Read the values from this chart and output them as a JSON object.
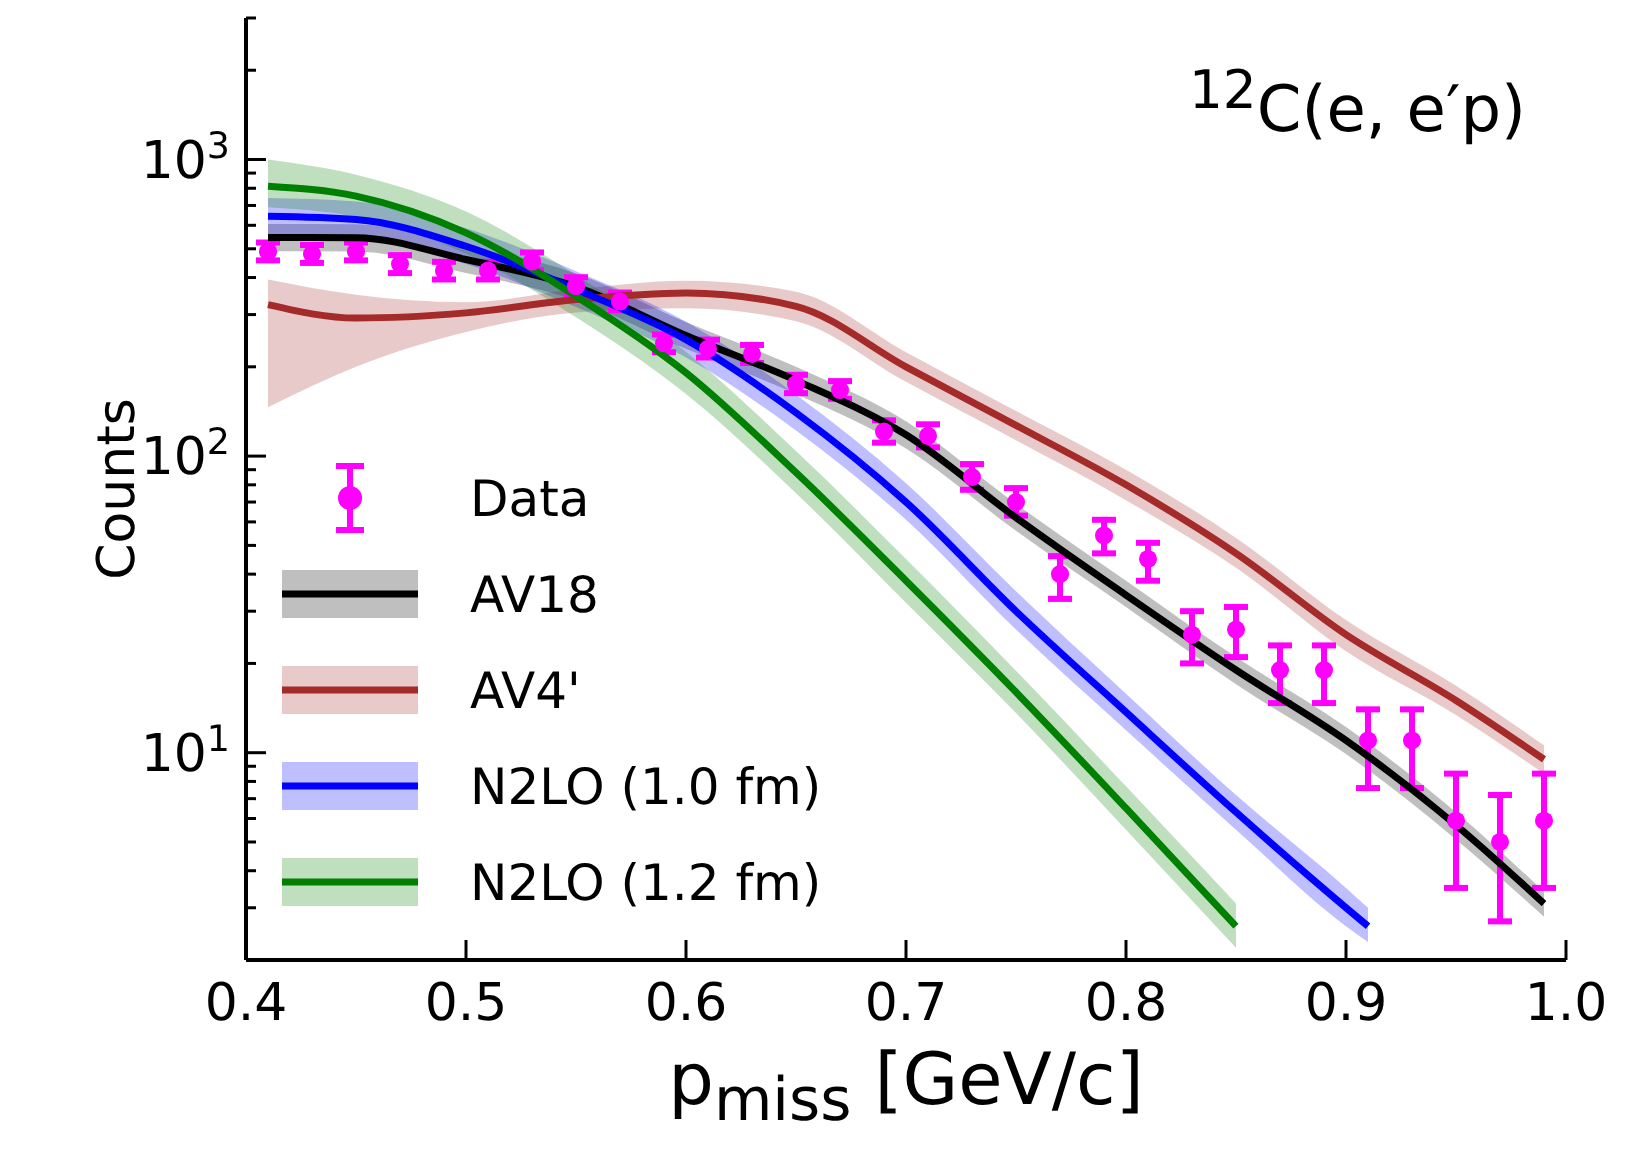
{
  "chart_data": {
    "type": "line",
    "xlabel": "p$_{miss}$ [GeV/c]",
    "ylabel": "Counts",
    "annotations": [
      "$^{12}$C(e, e′p)"
    ],
    "log": "y",
    "legend": "bottom left",
    "line_style": "solid",
    "xlim": [
      0.4,
      1.0
    ],
    "xticks": [
      0.4,
      0.5,
      0.6,
      0.7,
      0.8,
      0.9,
      {
        "value": 1.0,
        "label": "1.0"
      }
    ],
    "ylim": [
      2,
      3000
    ],
    "yticks": [
      {
        "value": 2,
        "label": null
      },
      {
        "value": 3,
        "label": null
      },
      {
        "value": 4,
        "label": null
      },
      {
        "value": 5,
        "label": null
      },
      {
        "value": 6,
        "label": null
      },
      {
        "value": 7,
        "label": null
      },
      {
        "value": 8,
        "label": null
      },
      {
        "value": 9,
        "label": null
      },
      {
        "value": 10,
        "label": "10$^{1}$"
      },
      {
        "value": 20,
        "label": null
      },
      {
        "value": 30,
        "label": null
      },
      {
        "value": 40,
        "label": null
      },
      {
        "value": 50,
        "label": null
      },
      {
        "value": 60,
        "label": null
      },
      {
        "value": 70,
        "label": null
      },
      {
        "value": 80,
        "label": null
      },
      {
        "value": 90,
        "label": null
      },
      {
        "value": 100,
        "label": "10$^{2}$"
      },
      {
        "value": 200,
        "label": null
      },
      {
        "value": 300,
        "label": null
      },
      {
        "value": 400,
        "label": null
      },
      {
        "value": 500,
        "label": null
      },
      {
        "value": 600,
        "label": null
      },
      {
        "value": 700,
        "label": null
      },
      {
        "value": 800,
        "label": null
      },
      {
        "value": 900,
        "label": null
      },
      {
        "value": 1000,
        "label": "10$^{3}$"
      },
      {
        "value": 2000,
        "label": null
      },
      {
        "value": 3000,
        "label": null
      }
    ],
    "series": [
      {
        "type": "scatter",
        "marker": "circle",
        "name": "Data",
        "color": "#ff00ff",
        "x": [
          0.41,
          0.43,
          0.45,
          0.47,
          0.49,
          0.51,
          0.53,
          0.55,
          0.57,
          0.59,
          0.61,
          0.63,
          0.65,
          0.67,
          0.69,
          0.71,
          0.73,
          0.75,
          0.77,
          0.79,
          0.81,
          0.83,
          0.85,
          0.87,
          0.89,
          0.91,
          0.93,
          0.95,
          0.97,
          0.99
        ],
        "values": [
          490,
          480,
          490,
          444,
          422,
          422,
          453,
          374,
          332,
          240,
          230,
          221,
          175,
          167,
          121,
          117,
          85,
          70,
          40,
          54,
          45,
          25,
          26,
          19,
          19,
          11,
          11,
          5.9,
          5.0,
          5.9
        ],
        "errors": [
          [
            457,
            525
          ],
          [
            448,
            515
          ],
          [
            457,
            525
          ],
          [
            414,
            476
          ],
          [
            394,
            452
          ],
          [
            394,
            452
          ],
          [
            423,
            486
          ],
          [
            349,
            401
          ],
          [
            310,
            356
          ],
          [
            224,
            257
          ],
          [
            215,
            247
          ],
          [
            206,
            237
          ],
          [
            163,
            188
          ],
          [
            156,
            179
          ],
          [
            111,
            132
          ],
          [
            107,
            128
          ],
          [
            77,
            94
          ],
          [
            63,
            78
          ],
          [
            33,
            46
          ],
          [
            47,
            61
          ],
          [
            38,
            51
          ],
          [
            20,
            30
          ],
          [
            21,
            31
          ],
          [
            14.7,
            23
          ],
          [
            14.7,
            23
          ],
          [
            7.6,
            14
          ],
          [
            7.6,
            14
          ],
          [
            3.5,
            8.5
          ],
          [
            2.7,
            7.2
          ],
          [
            3.5,
            8.5
          ]
        ]
      },
      {
        "name": "AV18",
        "color": "#000000",
        "x": [
          0.41,
          0.45,
          0.5,
          0.55,
          0.6,
          0.65,
          0.7,
          0.75,
          0.8,
          0.85,
          0.9,
          0.95,
          0.99
        ],
        "values": [
          546,
          545,
          460,
          372,
          255,
          180,
          118,
          62,
          34,
          19,
          11,
          5.7,
          3.1
        ],
        "lower": [
          491,
          490,
          414,
          335,
          230,
          162,
          106,
          56,
          31,
          17,
          9.9,
          5.1,
          2.8
        ],
        "upper": [
          606,
          605,
          511,
          413,
          283,
          200,
          131,
          69,
          38,
          21,
          12.2,
          6.3,
          3.4
        ]
      },
      {
        "name": "AV4'",
        "color": "#a52a2a",
        "x": [
          0.41,
          0.45,
          0.5,
          0.55,
          0.6,
          0.65,
          0.7,
          0.75,
          0.8,
          0.85,
          0.9,
          0.95,
          0.99
        ],
        "values": [
          324,
          292,
          304,
          337,
          355,
          320,
          200,
          127,
          80,
          47,
          25,
          15,
          9.5
        ],
        "lower": [
          146,
          200,
          262,
          305,
          315,
          285,
          178,
          113,
          71,
          42,
          22,
          13.4,
          8.5
        ],
        "upper": [
          394,
          350,
          330,
          365,
          390,
          358,
          224,
          142,
          90,
          53,
          28,
          16.8,
          10.6
        ]
      },
      {
        "name": "N2LO (1.0 fm)",
        "color": "#0000ff",
        "x": [
          0.41,
          0.45,
          0.5,
          0.55,
          0.6,
          0.65,
          0.7,
          0.75,
          0.8,
          0.85,
          0.9,
          0.91
        ],
        "values": [
          644,
          628,
          510,
          365,
          247,
          140,
          70,
          30,
          13.7,
          6.3,
          3.0,
          2.6
        ],
        "lower": [
          560,
          546,
          444,
          318,
          215,
          122,
          61,
          26,
          11.9,
          5.5,
          2.6,
          2.3
        ],
        "upper": [
          741,
          722,
          587,
          420,
          284,
          161,
          81,
          35,
          15.8,
          7.2,
          3.5,
          3.0
        ]
      },
      {
        "name": "N2LO (1.2 fm)",
        "color": "#008000",
        "x": [
          0.41,
          0.45,
          0.5,
          0.55,
          0.6,
          0.65,
          0.7,
          0.75,
          0.8,
          0.85
        ],
        "values": [
          813,
          753,
          566,
          346,
          191,
          88,
          38,
          16,
          6.5,
          2.6
        ],
        "lower": [
          690,
          640,
          481,
          294,
          162,
          75,
          32,
          13.6,
          5.5,
          2.2
        ],
        "upper": [
          1000,
          889,
          668,
          408,
          225,
          104,
          45,
          18.9,
          7.7,
          3.1
        ]
      }
    ]
  }
}
